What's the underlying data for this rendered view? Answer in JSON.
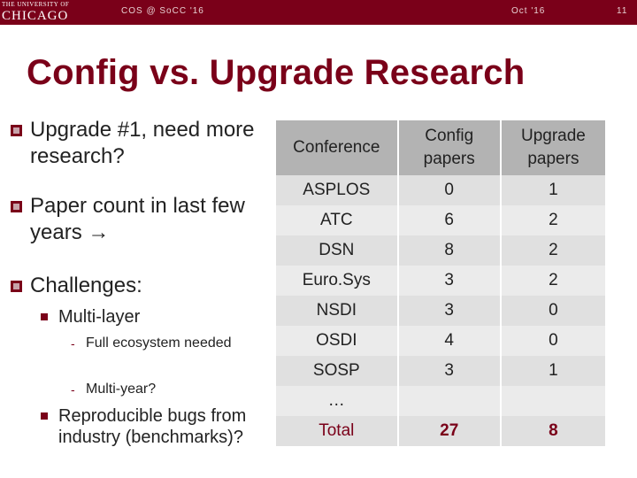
{
  "header": {
    "logo_small": "THE UNIVERSITY OF",
    "logo_big": "CHICAGO",
    "left_text": "COS @ SoCC '16",
    "mid_text": "Oct '16",
    "slide_number": "11",
    "bar_color": "#7a0019"
  },
  "slide": {
    "title": "Config vs. Upgrade Research",
    "bullets": [
      {
        "text": "Upgrade #1, need more research?"
      },
      {
        "text": "Paper count in last few years →"
      },
      {
        "text": "Challenges:"
      }
    ],
    "sub_bullets": [
      {
        "text": "Multi-layer"
      },
      {
        "text": "Reproducible bugs from industry (benchmarks)?"
      }
    ],
    "sub_sub_bullets": [
      {
        "text": "Full ecosystem needed"
      },
      {
        "text": "Multi-year?"
      }
    ],
    "dash_glyph": "-"
  },
  "table": {
    "headers": [
      "Conference",
      "Config papers",
      "Upgrade papers"
    ],
    "rows": [
      [
        "ASPLOS",
        "0",
        "1"
      ],
      [
        "ATC",
        "6",
        "2"
      ],
      [
        "DSN",
        "8",
        "2"
      ],
      [
        "Euro.Sys",
        "3",
        "2"
      ],
      [
        "NSDI",
        "3",
        "0"
      ],
      [
        "OSDI",
        "4",
        "0"
      ],
      [
        "SOSP",
        "3",
        "1"
      ],
      [
        "…",
        "",
        ""
      ]
    ],
    "total": [
      "Total",
      "27",
      "8"
    ]
  }
}
